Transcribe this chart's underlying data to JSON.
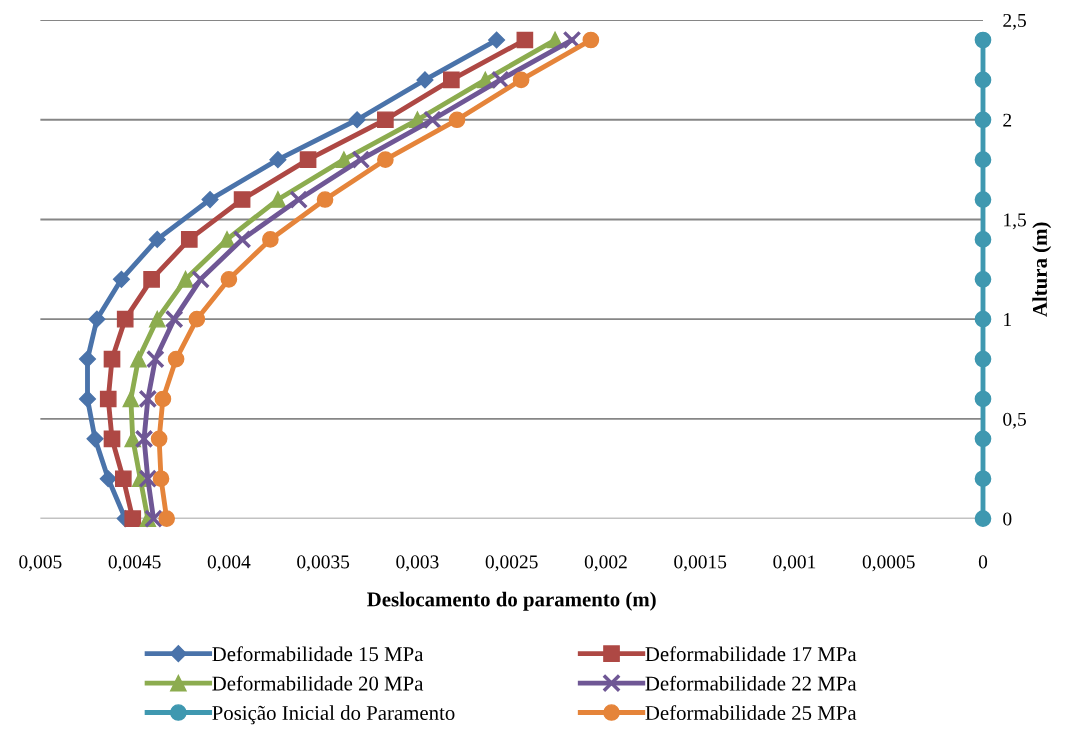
{
  "chart_data": {
    "type": "line",
    "xlabel": "Deslocamento do paramento (m)",
    "ylabel": "Altura (m)",
    "xlim": [
      0.005,
      0
    ],
    "xticks": [
      {
        "value": 0.005,
        "label": "0,005"
      },
      {
        "value": 0.0045,
        "label": "0,0045"
      },
      {
        "value": 0.004,
        "label": "0,004"
      },
      {
        "value": 0.0035,
        "label": "0,0035"
      },
      {
        "value": 0.003,
        "label": "0,003"
      },
      {
        "value": 0.0025,
        "label": "0,0025"
      },
      {
        "value": 0.002,
        "label": "0,002"
      },
      {
        "value": 0.0015,
        "label": "0,0015"
      },
      {
        "value": 0.001,
        "label": "0,001"
      },
      {
        "value": 0.0005,
        "label": "0,0005"
      },
      0
    ],
    "ylim": [
      0,
      2.5
    ],
    "yticks": [
      0,
      {
        "value": 0.5,
        "label": "0,5"
      },
      1,
      {
        "value": 1.5,
        "label": "1,5"
      },
      2,
      {
        "value": 2.5,
        "label": "2,5"
      }
    ],
    "grid": "y",
    "legend": "bottom",
    "series": [
      {
        "name": "Deformabilidade 15 MPa",
        "color": "#4a73aa",
        "marker": "diamond",
        "x": [
          0.00455,
          0.00464,
          0.00471,
          0.00475,
          0.00475,
          0.0047,
          0.00457,
          0.00438,
          0.0041,
          0.00374,
          0.00332,
          0.00296,
          0.00258
        ],
        "values": [
          0,
          0.2,
          0.4,
          0.6,
          0.8,
          1.0,
          1.2,
          1.4,
          1.6,
          1.8,
          2.0,
          2.2,
          2.4
        ]
      },
      {
        "name": "Deformabilidade 17 MPa",
        "color": "#ae4844",
        "marker": "square",
        "x": [
          0.00451,
          0.00456,
          0.00462,
          0.00464,
          0.00462,
          0.00455,
          0.00441,
          0.00421,
          0.00393,
          0.00358,
          0.00317,
          0.00282,
          0.00243
        ],
        "values": [
          0,
          0.2,
          0.4,
          0.6,
          0.8,
          1.0,
          1.2,
          1.4,
          1.6,
          1.8,
          2.0,
          2.2,
          2.4
        ]
      },
      {
        "name": "Deformabilidade 20 MPa",
        "color": "#8cac4f",
        "marker": "triangle",
        "x": [
          0.00443,
          0.00447,
          0.00451,
          0.00452,
          0.00448,
          0.00438,
          0.00423,
          0.00401,
          0.00374,
          0.00339,
          0.003,
          0.00264,
          0.00227
        ],
        "values": [
          0,
          0.2,
          0.4,
          0.6,
          0.8,
          1.0,
          1.2,
          1.4,
          1.6,
          1.8,
          2.0,
          2.2,
          2.4
        ]
      },
      {
        "name": "Deformabilidade 22 MPa",
        "color": "#6f5795",
        "marker": "cross",
        "x": [
          0.0044,
          0.00443,
          0.00445,
          0.00443,
          0.00439,
          0.00429,
          0.00415,
          0.00393,
          0.00363,
          0.0033,
          0.00292,
          0.00256,
          0.00218
        ],
        "values": [
          0,
          0.2,
          0.4,
          0.6,
          0.8,
          1.0,
          1.2,
          1.4,
          1.6,
          1.8,
          2.0,
          2.2,
          2.4
        ]
      },
      {
        "name": "Posição Inicial do Paramento",
        "color": "#3f98b0",
        "marker": "circle",
        "x": [
          0,
          0,
          0,
          0,
          0,
          0,
          0,
          0,
          0,
          0,
          0,
          0,
          0
        ],
        "values": [
          0,
          0.2,
          0.4,
          0.6,
          0.8,
          1.0,
          1.2,
          1.4,
          1.6,
          1.8,
          2.0,
          2.2,
          2.4
        ]
      },
      {
        "name": "Deformabilidade 25 MPa",
        "color": "#e5843a",
        "marker": "circle",
        "x": [
          0.00433,
          0.00436,
          0.00437,
          0.00435,
          0.00428,
          0.00417,
          0.004,
          0.00378,
          0.00349,
          0.00317,
          0.00279,
          0.00245,
          0.00208
        ],
        "values": [
          0,
          0.2,
          0.4,
          0.6,
          0.8,
          1.0,
          1.2,
          1.4,
          1.6,
          1.8,
          2.0,
          2.2,
          2.4
        ]
      }
    ]
  }
}
